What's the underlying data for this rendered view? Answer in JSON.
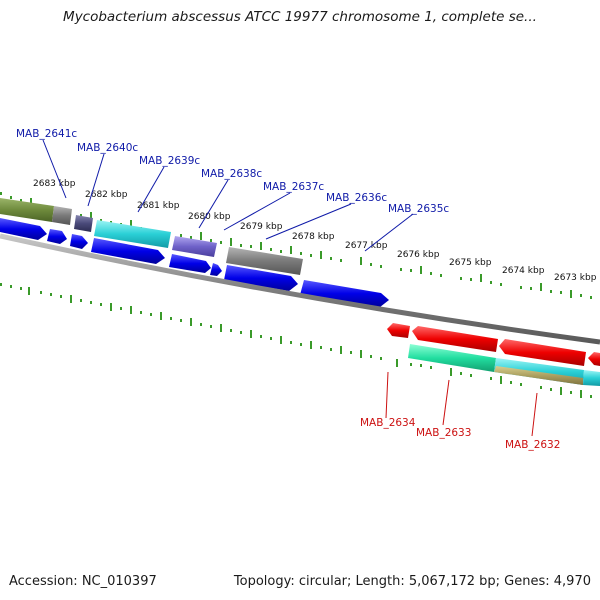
{
  "title": "Mycobacterium abscessus ATCC 19977 chromosome 1, complete se...",
  "footer": {
    "accession": "Accession: NC_010397",
    "summary": "Topology: circular; Length: 5,067,172 bp; Genes: 4,970"
  },
  "colors": {
    "tick": "#3a9a2a",
    "backbone": "#7f7f7f",
    "forward_label": "#0f1aa8",
    "reverse_label": "#cc1111"
  },
  "kbp_ticks": [
    "2683 kbp",
    "2682 kbp",
    "2681 kbp",
    "2680 kbp",
    "2679 kbp",
    "2678 kbp",
    "2677 kbp",
    "2676 kbp",
    "2675 kbp",
    "2674 kbp",
    "2673 kbp"
  ],
  "gene_labels_top": [
    "MAB_2641c",
    "MAB_2640c",
    "MAB_2639c",
    "MAB_2638c",
    "MAB_2637c",
    "MAB_2636c",
    "MAB_2635c"
  ],
  "gene_labels_bottom": [
    "MAB_2634",
    "MAB_2633",
    "MAB_2632"
  ]
}
